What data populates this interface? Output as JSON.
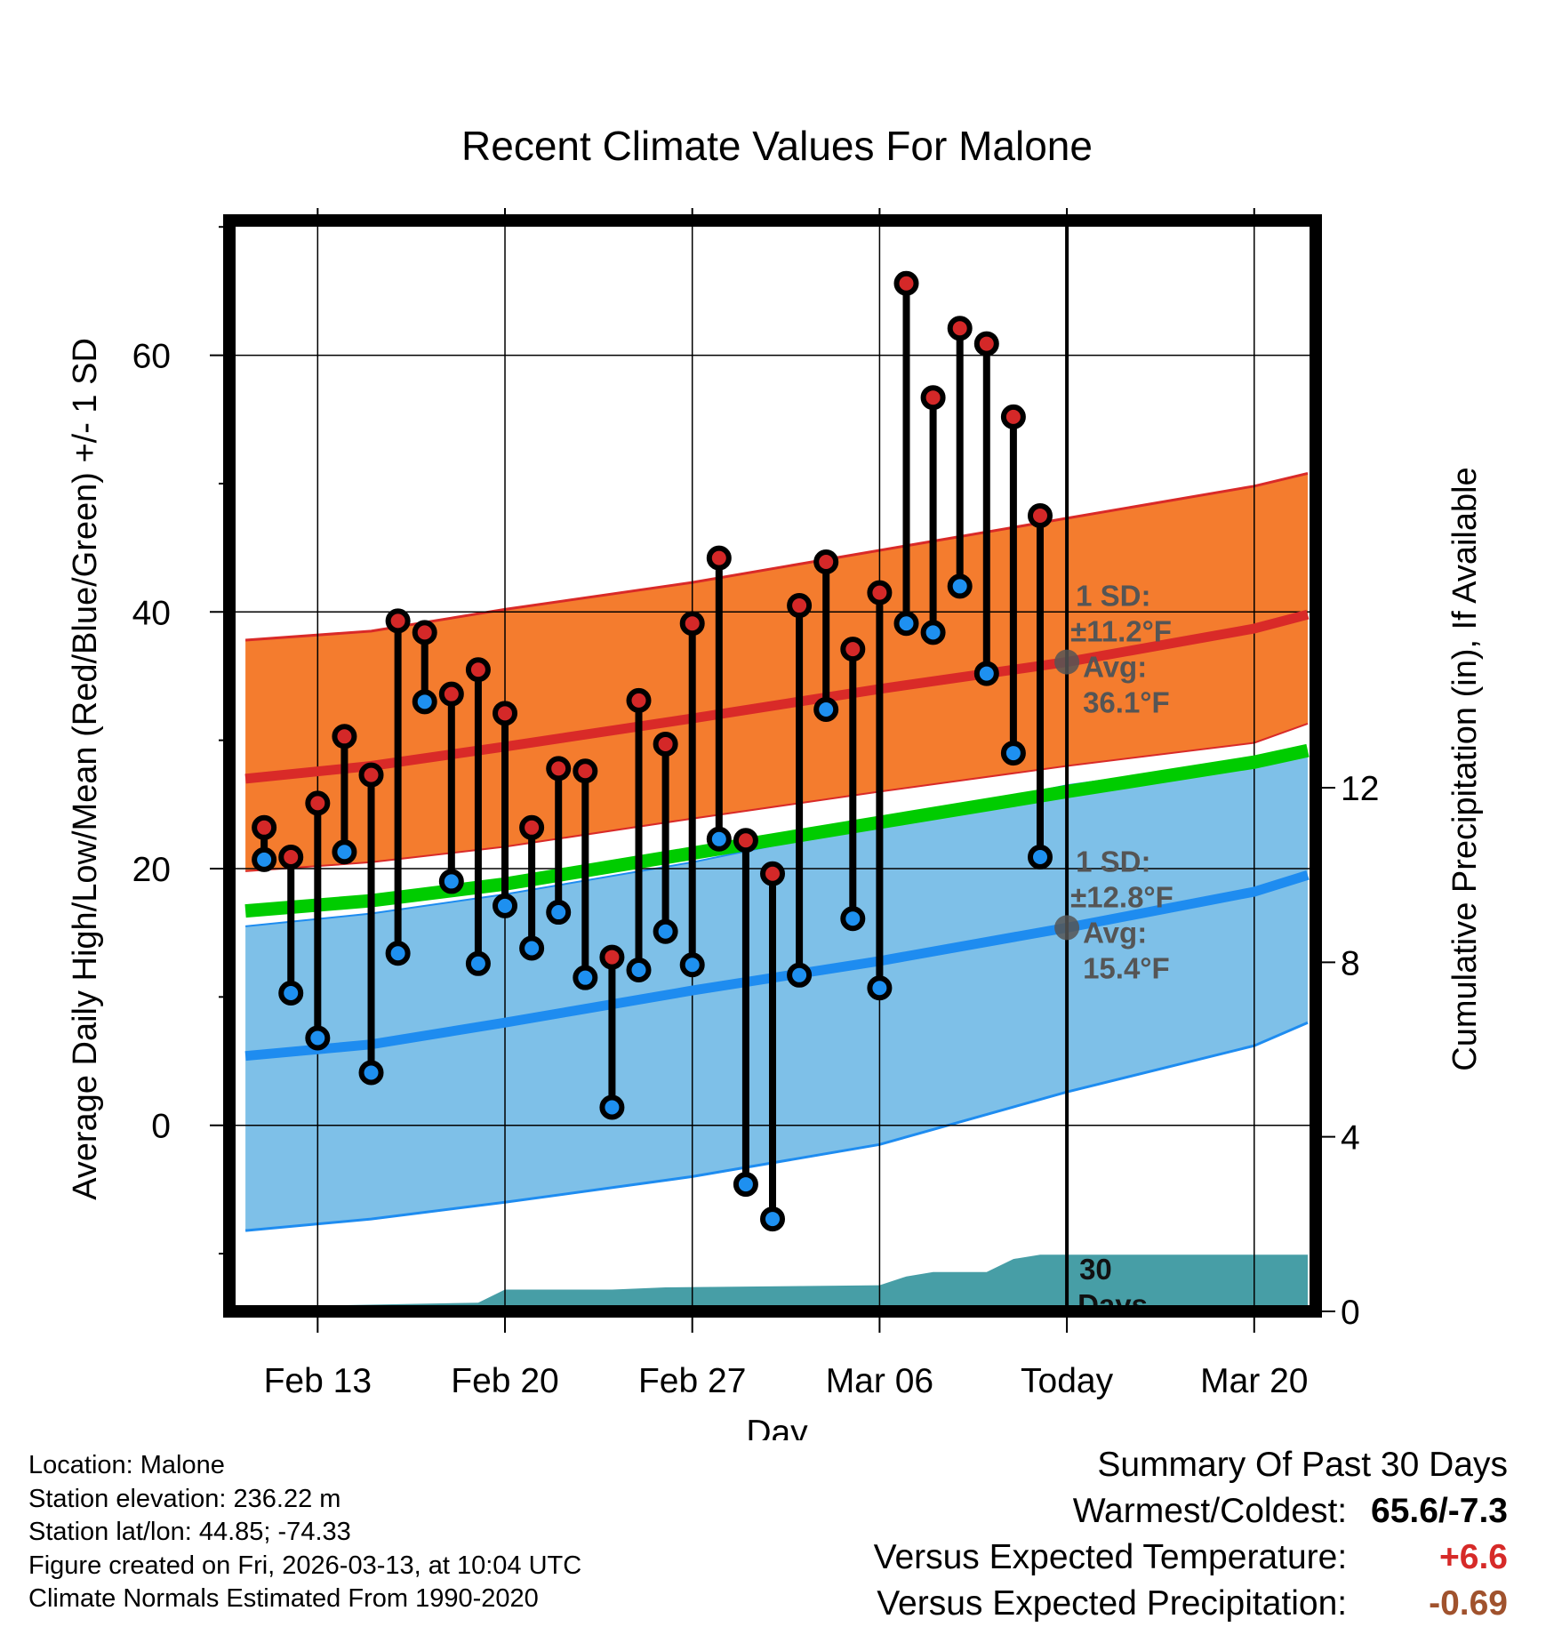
{
  "chart_data": {
    "type": "line",
    "title": "Recent Climate Values For Malone",
    "xlabel": "Day",
    "ylabel": "Average Daily High/Low/Mean (Red/Blue/Green) +/- 1 SD",
    "y2label": "Cumulative Precipitation (in), If Available",
    "xlim": [
      -3.3,
      37.3
    ],
    "ylim": [
      -14.5,
      70.5
    ],
    "y2lim": [
      0,
      25
    ],
    "x_tick_positions": [
      0,
      7,
      14,
      21,
      28,
      35
    ],
    "x_tick_labels": [
      "Feb 13",
      "Feb 20",
      "Feb 27",
      "Mar 06",
      "Today",
      "Mar 20"
    ],
    "y_ticks": [
      0,
      20,
      40,
      60
    ],
    "y2_ticks": [
      0,
      4,
      8,
      12
    ],
    "today_x": 28,
    "day_index_note": "x = days after Feb 13",
    "normal_high": {
      "x": [
        -2.7,
        2,
        7,
        14,
        21,
        28,
        35,
        37
      ],
      "mean": [
        27,
        28,
        29.5,
        31.7,
        34,
        36.1,
        38.7,
        39.8
      ],
      "upper": [
        37.8,
        38.5,
        40.2,
        42.3,
        44.8,
        47.3,
        49.8,
        50.8
      ],
      "lower": [
        19.8,
        20.5,
        21.7,
        23.9,
        26,
        28,
        29.8,
        31.3
      ]
    },
    "normal_low": {
      "x": [
        -2.7,
        2,
        7,
        14,
        21,
        28,
        35,
        37
      ],
      "mean": [
        5.4,
        6.3,
        8,
        10.5,
        12.8,
        15.4,
        18.2,
        19.5
      ],
      "upper": [
        15.5,
        16.5,
        18,
        20.5,
        23.5,
        26.5,
        28.5,
        29
      ],
      "lower": [
        -8.2,
        -7.3,
        -6,
        -4,
        -1.5,
        2.6,
        6.2,
        8
      ]
    },
    "normal_mean": {
      "x": [
        -2.7,
        2,
        7,
        14,
        21,
        28,
        35,
        37
      ],
      "values": [
        16.7,
        17.5,
        18.8,
        21.2,
        23.6,
        26,
        28.3,
        29.2
      ]
    },
    "observed": {
      "x": [
        -2,
        -1,
        0,
        1,
        2,
        3,
        4,
        5,
        6,
        7,
        8,
        9,
        10,
        11,
        12,
        13,
        14,
        15,
        16,
        17,
        18,
        19,
        20,
        21,
        22,
        23,
        24,
        25,
        26,
        27
      ],
      "high": [
        23.2,
        20.9,
        25.1,
        30.3,
        27.3,
        39.3,
        38.4,
        33.6,
        35.5,
        32.1,
        23.2,
        27.8,
        27.6,
        13.1,
        33.1,
        29.7,
        39.1,
        44.2,
        22.2,
        19.6,
        40.5,
        43.9,
        37.1,
        41.5,
        65.6,
        56.7,
        62.1,
        60.9,
        55.2,
        47.5
      ],
      "low": [
        20.7,
        10.3,
        6.8,
        21.3,
        4.1,
        13.4,
        33,
        19,
        12.6,
        17.1,
        13.8,
        16.6,
        11.5,
        1.4,
        12.1,
        15.1,
        12.5,
        22.3,
        -4.6,
        -7.3,
        11.7,
        32.4,
        16.1,
        10.7,
        39.1,
        38.4,
        42,
        35.2,
        29,
        20.9
      ]
    },
    "precip_cumulative": {
      "x": [
        -2.7,
        6,
        7,
        11,
        13,
        21,
        22,
        23,
        25,
        26,
        27,
        37
      ],
      "values": [
        0.1,
        0.2,
        0.5,
        0.5,
        0.55,
        0.6,
        0.8,
        0.9,
        0.9,
        1.2,
        1.3,
        1.3
      ]
    },
    "annotations": {
      "high_sd_line1": "1 SD:",
      "high_sd_line2": "±11.2°F",
      "high_avg_line1": "Avg:",
      "high_avg_line2": "36.1°F",
      "high_avg_value": 36.1,
      "low_sd_line1": "1 SD:",
      "low_sd_line2": "±12.8°F",
      "low_avg_line1": "Avg:",
      "low_avg_line2": "15.4°F",
      "low_avg_value": 15.4,
      "days_line1": "30",
      "days_line2": "Days"
    },
    "colors": {
      "high_band": "#f47c2e",
      "high_edge": "#d92a28",
      "high_mean": "#d92a28",
      "low_band": "#7ec0e8",
      "low_edge": "#1e8cf0",
      "low_mean": "#1e8cf0",
      "overlap": "#9b1214",
      "mean_line": "#00cc00",
      "precip": "#479ea6",
      "high_dot": "#d42828",
      "low_dot": "#1e90f0",
      "annotation": "#555555"
    }
  },
  "info": {
    "location": "Location: Malone",
    "elevation": "Station elevation: 236.22 m",
    "latlon": "Station lat/lon: 44.85; -74.33",
    "created": "Figure created on Fri, 2026-03-13, at 10:04 UTC",
    "normals": "Climate Normals Estimated From 1990-2020"
  },
  "summary": {
    "title": "Summary Of Past 30 Days",
    "warmest_coldest_label": "Warmest/Coldest:",
    "warmest_coldest_value": "65.6/-7.3",
    "temp_label": "Versus Expected Temperature:",
    "temp_value": "+6.6",
    "precip_label": "Versus Expected Precipitation:",
    "precip_value": "-0.69"
  }
}
